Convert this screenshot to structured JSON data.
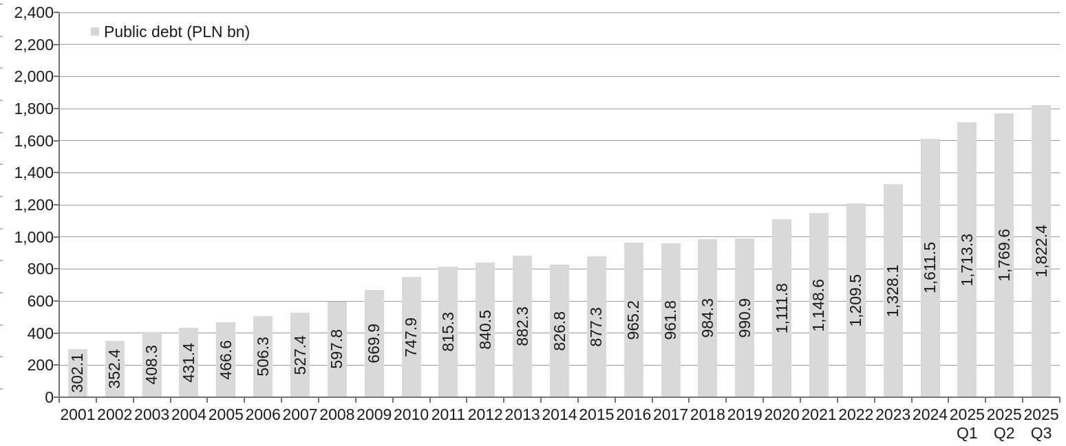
{
  "chart_data": {
    "type": "bar",
    "title": "",
    "legend": "Public debt (PLN bn)",
    "legend_position": "top-left",
    "categories": [
      "2001",
      "2002",
      "2003",
      "2004",
      "2005",
      "2006",
      "2007",
      "2008",
      "2009",
      "2010",
      "2011",
      "2012",
      "2013",
      "2014",
      "2015",
      "2016",
      "2017",
      "2018",
      "2019",
      "2020",
      "2021",
      "2022",
      "2023",
      "2024",
      "2025\nQ1",
      "2025\nQ2",
      "2025\nQ3"
    ],
    "values": [
      302.1,
      352.4,
      408.3,
      431.4,
      466.6,
      506.3,
      527.4,
      597.8,
      669.9,
      747.9,
      815.3,
      840.5,
      882.3,
      826.8,
      877.3,
      965.2,
      961.8,
      984.3,
      990.9,
      1111.8,
      1148.6,
      1209.5,
      1328.1,
      1611.5,
      1713.3,
      1769.6,
      1822.4
    ],
    "value_labels": [
      "302.1",
      "352.4",
      "408.3",
      "431.4",
      "466.6",
      "506.3",
      "527.4",
      "597.8",
      "669.9",
      "747.9",
      "815.3",
      "840.5",
      "882.3",
      "826.8",
      "877.3",
      "965.2",
      "961.8",
      "984.3",
      "990.9",
      "1,111.8",
      "1,148.6",
      "1,209.5",
      "1,328.1",
      "1,611.5",
      "1,713.3",
      "1,769.6",
      "1,822.4"
    ],
    "value_label_position": "center-inside-rotated",
    "xlabel": "",
    "ylabel": "",
    "ylim": [
      0,
      2400
    ],
    "y_tick_step": 200,
    "y_tick_labels": [
      "0",
      "200",
      "400",
      "600",
      "800",
      "1,000",
      "1,200",
      "1,400",
      "1,600",
      "1,800",
      "2,000",
      "2,200",
      "2,400"
    ],
    "grid": true,
    "bar_color": "#d9d9d9",
    "legend_marker_color": "#d6d6d6",
    "gridline_color": "#9d9d9d",
    "axis_color": "#737373",
    "text_color": "#1a1a1a"
  }
}
